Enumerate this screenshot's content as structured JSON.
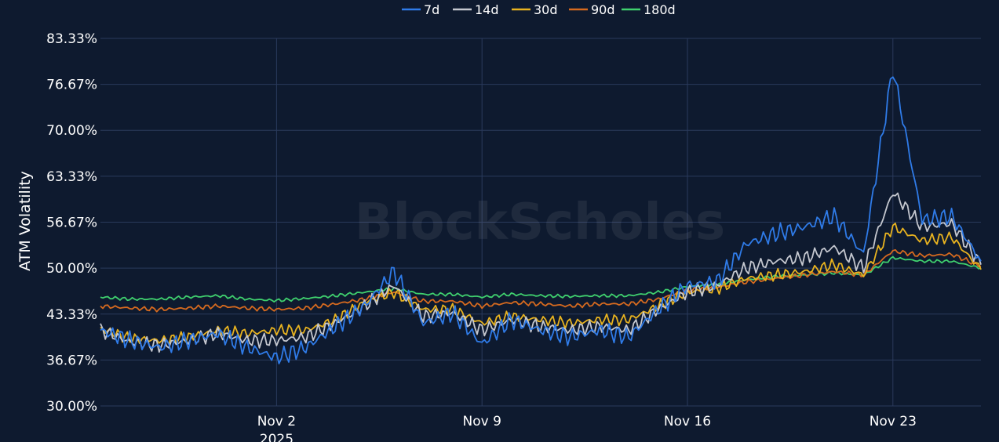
{
  "colors": {
    "background": "#0e1a2f",
    "grid": "#2a3a5c",
    "text": "#ffffff"
  },
  "watermark": "BlockScholes",
  "chart_data": {
    "type": "line",
    "title": "",
    "ylabel": "ATM Volatility",
    "xlabel": "",
    "ylim": [
      30.0,
      83.33
    ],
    "xlim": [
      "2025-10-27",
      "2025-11-26"
    ],
    "y_ticks": [
      30.0,
      36.67,
      43.33,
      50.0,
      56.67,
      63.33,
      70.0,
      76.67,
      83.33
    ],
    "y_tick_labels": [
      "30.00%",
      "36.67%",
      "43.33%",
      "50.00%",
      "56.67%",
      "63.33%",
      "70.00%",
      "76.67%",
      "83.33%"
    ],
    "x_ticks": [
      "2025-11-02",
      "2025-11-09",
      "2025-11-16",
      "2025-11-23"
    ],
    "x_tick_labels": [
      "Nov 2",
      "Nov 9",
      "Nov 16",
      "Nov 23"
    ],
    "x_tick_year": "2025",
    "grid": true,
    "legend_position": "top-center",
    "x": [
      "2025-10-27",
      "2025-10-28",
      "2025-10-29",
      "2025-10-30",
      "2025-10-31",
      "2025-11-01",
      "2025-11-02",
      "2025-11-03",
      "2025-11-04",
      "2025-11-05",
      "2025-11-06",
      "2025-11-07",
      "2025-11-08",
      "2025-11-09",
      "2025-11-10",
      "2025-11-11",
      "2025-11-12",
      "2025-11-13",
      "2025-11-14",
      "2025-11-15",
      "2025-11-16",
      "2025-11-17",
      "2025-11-18",
      "2025-11-19",
      "2025-11-20",
      "2025-11-21",
      "2025-11-22",
      "2025-11-23",
      "2025-11-24",
      "2025-11-25",
      "2025-11-26"
    ],
    "series": [
      {
        "name": "7d",
        "color": "#2f7be8",
        "values": [
          41.0,
          39.5,
          38.5,
          39.5,
          40.5,
          38.5,
          37.0,
          38.5,
          41.5,
          44.5,
          49.5,
          42.0,
          43.5,
          39.0,
          42.5,
          41.0,
          40.0,
          41.0,
          40.0,
          44.0,
          47.5,
          48.0,
          53.5,
          55.0,
          56.0,
          57.5,
          52.0,
          79.0,
          57.0,
          57.5,
          51.0
        ]
      },
      {
        "name": "14d",
        "color": "#c4c7cf",
        "values": [
          41.0,
          39.3,
          38.8,
          39.5,
          40.5,
          39.5,
          39.5,
          40.0,
          42.0,
          44.5,
          47.5,
          43.0,
          43.5,
          41.0,
          42.5,
          41.5,
          41.0,
          41.5,
          41.0,
          44.0,
          46.5,
          47.5,
          50.0,
          51.0,
          51.5,
          53.0,
          50.0,
          61.0,
          56.0,
          56.5,
          50.5
        ]
      },
      {
        "name": "30d",
        "color": "#e8b320",
        "values": [
          41.2,
          39.8,
          39.5,
          40.0,
          41.0,
          40.5,
          41.0,
          41.0,
          42.5,
          45.0,
          46.5,
          44.0,
          44.0,
          42.0,
          43.0,
          42.5,
          42.0,
          42.5,
          42.5,
          44.5,
          46.5,
          47.0,
          48.5,
          49.0,
          49.5,
          50.5,
          49.0,
          56.0,
          54.0,
          54.5,
          49.8
        ]
      },
      {
        "name": "90d",
        "color": "#d66a1f",
        "values": [
          44.5,
          44.2,
          44.0,
          44.2,
          44.5,
          44.2,
          44.0,
          44.2,
          44.8,
          45.5,
          46.5,
          45.2,
          45.2,
          44.5,
          45.0,
          44.8,
          44.5,
          44.8,
          44.8,
          45.5,
          46.8,
          47.2,
          48.0,
          48.5,
          49.0,
          49.5,
          49.0,
          52.5,
          51.8,
          52.0,
          50.3
        ]
      },
      {
        "name": "180d",
        "color": "#3fd06e",
        "values": [
          45.8,
          45.5,
          45.5,
          45.8,
          46.0,
          45.5,
          45.3,
          45.6,
          46.0,
          46.5,
          47.0,
          46.2,
          46.2,
          45.8,
          46.2,
          46.0,
          45.9,
          46.0,
          46.0,
          46.5,
          47.3,
          47.6,
          48.3,
          48.8,
          49.0,
          49.3,
          49.0,
          51.5,
          51.0,
          51.0,
          50.0
        ]
      }
    ]
  }
}
